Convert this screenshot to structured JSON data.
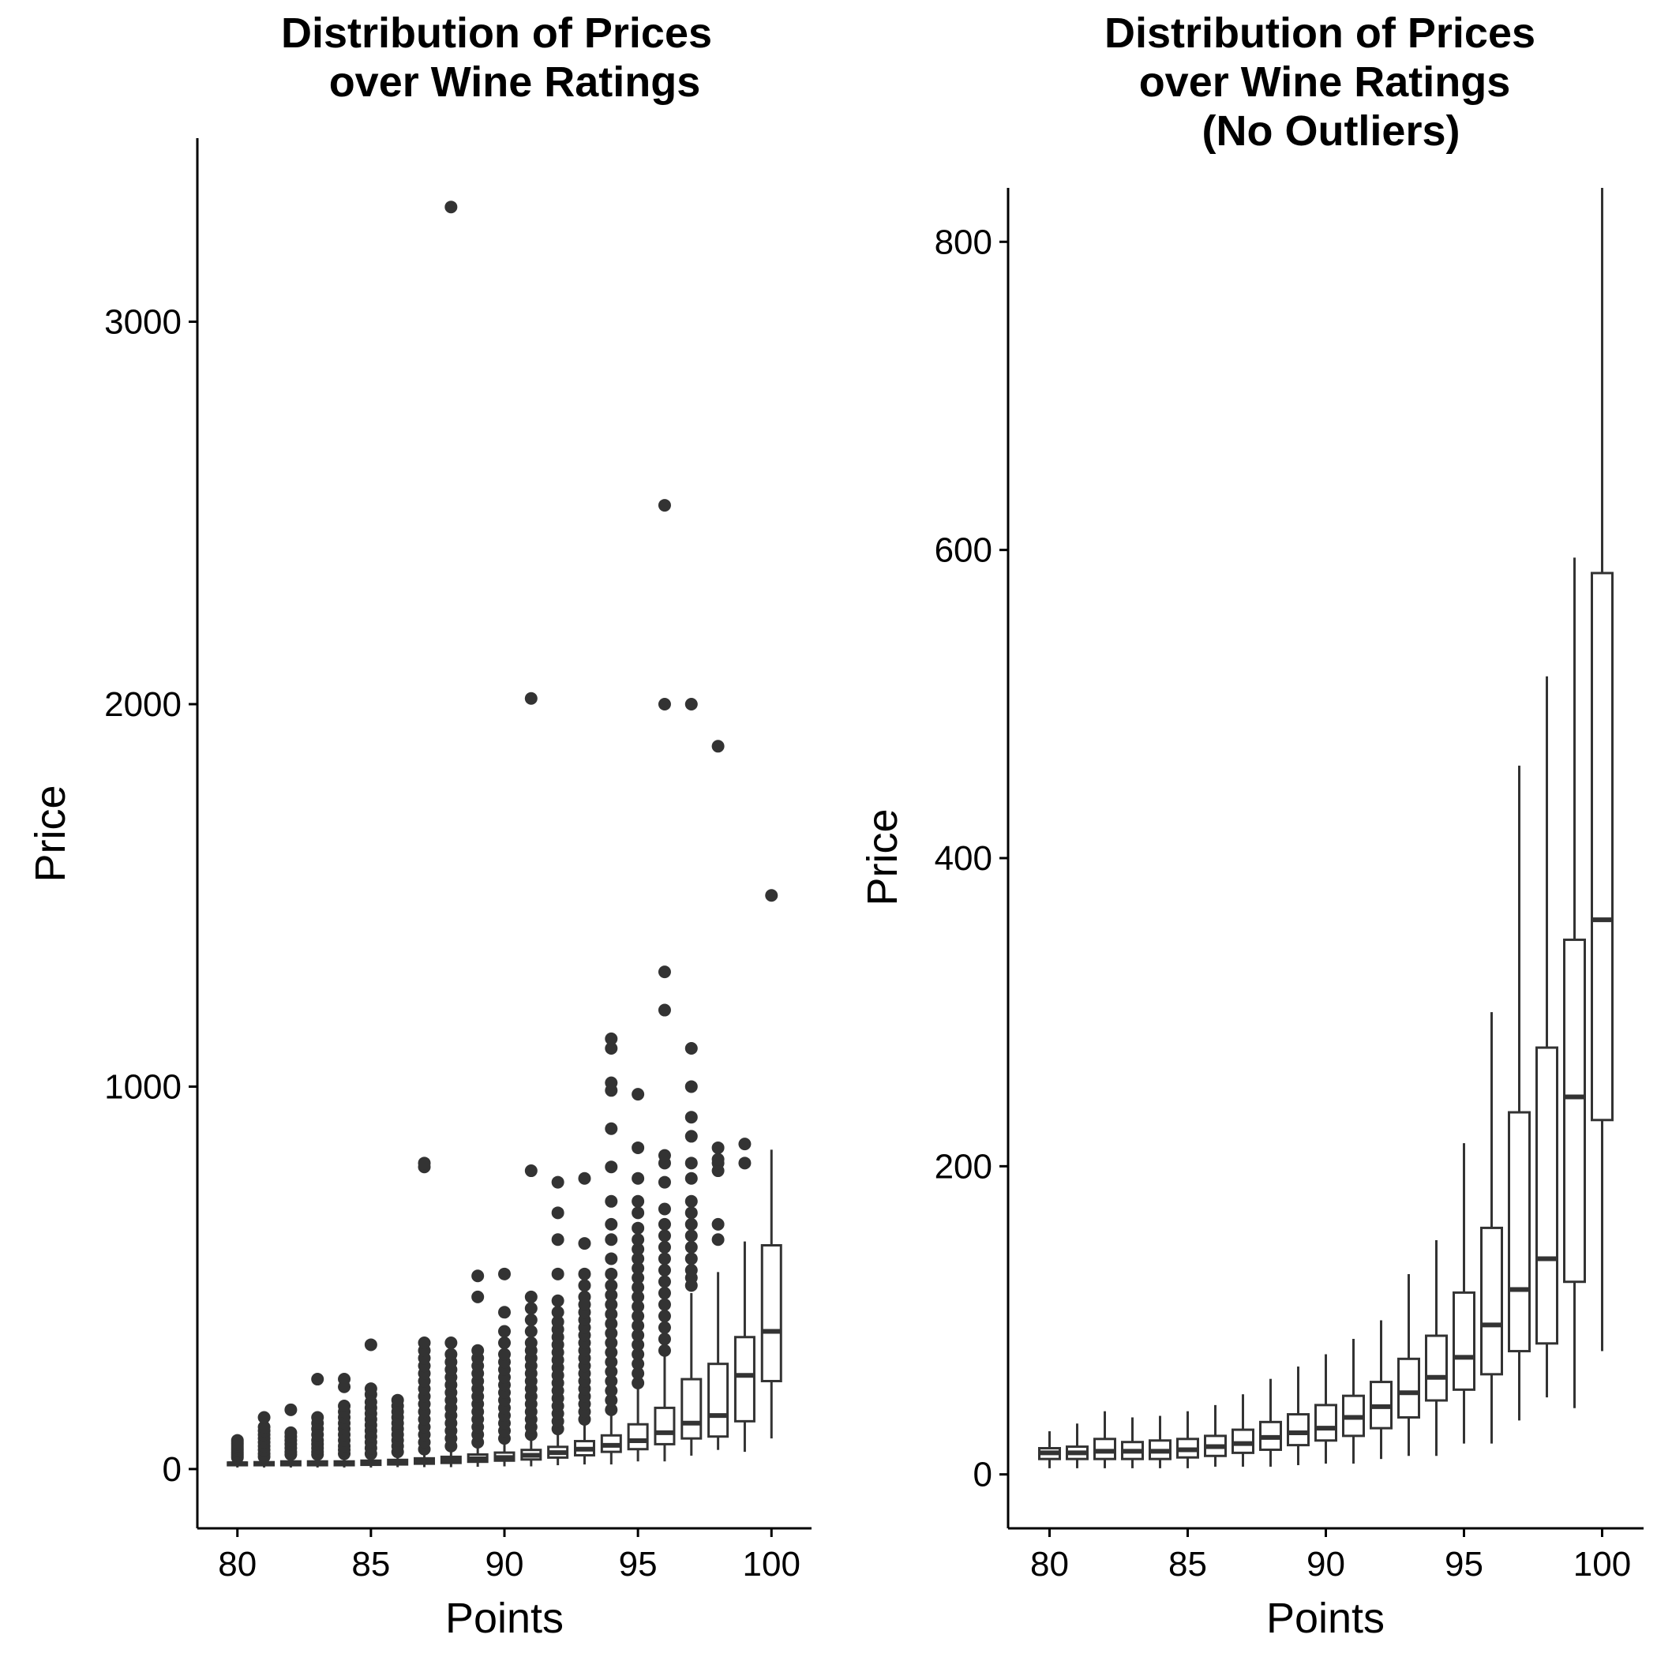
{
  "chart_data": [
    {
      "type": "boxplot",
      "title": [
        "Distribution of Prices",
        "over Wine Ratings"
      ],
      "xlabel": "Points",
      "ylabel": "Price",
      "xlim": [
        78.5,
        101.5
      ],
      "ylim": [
        -155,
        3480
      ],
      "xticks": [
        80,
        85,
        90,
        95,
        100
      ],
      "xtick_labels": [
        "80",
        "85",
        "90",
        "95",
        "100"
      ],
      "yticks": [
        0,
        1000,
        2000,
        3000
      ],
      "ytick_labels": [
        "0",
        "1000",
        "2000",
        "3000"
      ],
      "grid": false,
      "boxes": [
        {
          "x": 80,
          "q1": 10,
          "median": 14,
          "q3": 17,
          "whisker_low": 4,
          "whisker_high": 28,
          "outliers": [
            30,
            35,
            40,
            45,
            50,
            55,
            60,
            65,
            70,
            75
          ]
        },
        {
          "x": 81,
          "q1": 10,
          "median": 14,
          "q3": 18,
          "whisker_low": 4,
          "whisker_high": 30,
          "outliers": [
            32,
            40,
            50,
            60,
            70,
            80,
            90,
            100,
            110,
            135
          ]
        },
        {
          "x": 82,
          "q1": 10,
          "median": 15,
          "q3": 20,
          "whisker_low": 4,
          "whisker_high": 35,
          "outliers": [
            38,
            45,
            55,
            65,
            75,
            85,
            95,
            155
          ]
        },
        {
          "x": 83,
          "q1": 10,
          "median": 15,
          "q3": 20,
          "whisker_low": 4,
          "whisker_high": 35,
          "outliers": [
            38,
            45,
            55,
            65,
            75,
            90,
            105,
            120,
            135,
            235
          ]
        },
        {
          "x": 84,
          "q1": 10,
          "median": 15,
          "q3": 20,
          "whisker_low": 4,
          "whisker_high": 37,
          "outliers": [
            40,
            50,
            60,
            75,
            90,
            105,
            120,
            135,
            150,
            165,
            215,
            235
          ]
        },
        {
          "x": 85,
          "q1": 11,
          "median": 16,
          "q3": 22,
          "whisker_low": 4,
          "whisker_high": 38,
          "outliers": [
            40,
            55,
            70,
            85,
            100,
            115,
            130,
            145,
            160,
            175,
            195,
            210,
            325
          ]
        },
        {
          "x": 86,
          "q1": 12,
          "median": 18,
          "q3": 24,
          "whisker_low": 5,
          "whisker_high": 42,
          "outliers": [
            45,
            60,
            75,
            90,
            105,
            120,
            135,
            150,
            165,
            180
          ]
        },
        {
          "x": 87,
          "q1": 14,
          "median": 20,
          "q3": 28,
          "whisker_low": 5,
          "whisker_high": 48,
          "outliers": [
            52,
            70,
            90,
            110,
            130,
            150,
            170,
            190,
            210,
            230,
            250,
            270,
            290,
            310,
            330,
            790,
            800
          ]
        },
        {
          "x": 88,
          "q1": 16,
          "median": 24,
          "q3": 32,
          "whisker_low": 5,
          "whisker_high": 55,
          "outliers": [
            60,
            80,
            100,
            120,
            140,
            160,
            180,
            200,
            220,
            240,
            260,
            280,
            300,
            330,
            3300
          ]
        },
        {
          "x": 89,
          "q1": 19,
          "median": 27,
          "q3": 38,
          "whisker_low": 6,
          "whisker_high": 65,
          "outliers": [
            70,
            90,
            110,
            130,
            150,
            170,
            190,
            210,
            230,
            250,
            270,
            290,
            310,
            450,
            505
          ]
        },
        {
          "x": 90,
          "q1": 22,
          "median": 30,
          "q3": 43,
          "whisker_low": 7,
          "whisker_high": 75,
          "outliers": [
            80,
            100,
            120,
            140,
            160,
            180,
            200,
            220,
            240,
            260,
            280,
            300,
            330,
            360,
            410,
            510
          ]
        },
        {
          "x": 91,
          "q1": 25,
          "median": 36,
          "q3": 50,
          "whisker_low": 7,
          "whisker_high": 85,
          "outliers": [
            90,
            110,
            130,
            150,
            170,
            190,
            210,
            230,
            250,
            270,
            290,
            310,
            330,
            360,
            390,
            420,
            450,
            780,
            2015
          ]
        },
        {
          "x": 92,
          "q1": 30,
          "median": 43,
          "q3": 58,
          "whisker_low": 10,
          "whisker_high": 100,
          "outliers": [
            105,
            125,
            145,
            165,
            185,
            205,
            225,
            245,
            265,
            285,
            305,
            325,
            345,
            365,
            385,
            410,
            440,
            510,
            600,
            670,
            750
          ]
        },
        {
          "x": 93,
          "q1": 36,
          "median": 52,
          "q3": 73,
          "whisker_low": 12,
          "whisker_high": 125,
          "outliers": [
            130,
            150,
            170,
            190,
            210,
            230,
            250,
            270,
            290,
            310,
            330,
            350,
            370,
            390,
            410,
            430,
            450,
            480,
            510,
            590,
            760
          ]
        },
        {
          "x": 94,
          "q1": 45,
          "median": 62,
          "q3": 88,
          "whisker_low": 12,
          "whisker_high": 150,
          "outliers": [
            155,
            180,
            205,
            230,
            255,
            280,
            305,
            330,
            355,
            380,
            405,
            430,
            455,
            480,
            510,
            550,
            600,
            640,
            700,
            790,
            890,
            990,
            1010,
            1100,
            1125
          ]
        },
        {
          "x": 95,
          "q1": 52,
          "median": 74,
          "q3": 117,
          "whisker_low": 20,
          "whisker_high": 215,
          "outliers": [
            225,
            250,
            275,
            300,
            325,
            350,
            375,
            400,
            425,
            450,
            475,
            500,
            525,
            550,
            575,
            600,
            630,
            670,
            700,
            760,
            840,
            980
          ]
        },
        {
          "x": 96,
          "q1": 65,
          "median": 95,
          "q3": 160,
          "whisker_low": 20,
          "whisker_high": 300,
          "outliers": [
            310,
            340,
            370,
            400,
            430,
            460,
            490,
            520,
            550,
            580,
            610,
            640,
            680,
            750,
            800,
            820,
            1200,
            1300,
            2000,
            2520
          ]
        },
        {
          "x": 97,
          "q1": 80,
          "median": 120,
          "q3": 235,
          "whisker_low": 35,
          "whisker_high": 460,
          "outliers": [
            480,
            500,
            520,
            550,
            580,
            610,
            640,
            670,
            700,
            760,
            800,
            870,
            920,
            1000,
            1100,
            2000
          ]
        },
        {
          "x": 98,
          "q1": 85,
          "median": 140,
          "q3": 275,
          "whisker_low": 50,
          "whisker_high": 515,
          "outliers": [
            600,
            640,
            780,
            800,
            810,
            840,
            1890
          ]
        },
        {
          "x": 99,
          "q1": 125,
          "median": 245,
          "q3": 345,
          "whisker_low": 45,
          "whisker_high": 595,
          "outliers": [
            800,
            850
          ]
        },
        {
          "x": 100,
          "q1": 230,
          "median": 360,
          "q3": 585,
          "whisker_low": 80,
          "whisker_high": 835,
          "outliers": [
            1500
          ]
        }
      ]
    },
    {
      "type": "boxplot",
      "title": [
        "Distribution of Prices",
        "over Wine Ratings",
        "(No Outliers)"
      ],
      "xlabel": "Points",
      "ylabel": "Price",
      "xlim": [
        78.5,
        101.5
      ],
      "ylim": [
        -35,
        835
      ],
      "xticks": [
        80,
        85,
        90,
        95,
        100
      ],
      "xtick_labels": [
        "80",
        "85",
        "90",
        "95",
        "100"
      ],
      "yticks": [
        0,
        200,
        400,
        600,
        800
      ],
      "ytick_labels": [
        "0",
        "200",
        "400",
        "600",
        "800"
      ],
      "grid": false,
      "boxes": [
        {
          "x": 80,
          "q1": 10,
          "median": 14,
          "q3": 17,
          "whisker_low": 4,
          "whisker_high": 28
        },
        {
          "x": 81,
          "q1": 10,
          "median": 14,
          "q3": 18,
          "whisker_low": 4,
          "whisker_high": 33
        },
        {
          "x": 82,
          "q1": 10,
          "median": 15,
          "q3": 23,
          "whisker_low": 4,
          "whisker_high": 41
        },
        {
          "x": 83,
          "q1": 10,
          "median": 15,
          "q3": 21,
          "whisker_low": 4,
          "whisker_high": 37
        },
        {
          "x": 84,
          "q1": 10,
          "median": 15,
          "q3": 22,
          "whisker_low": 4,
          "whisker_high": 38
        },
        {
          "x": 85,
          "q1": 11,
          "median": 16,
          "q3": 23,
          "whisker_low": 4,
          "whisker_high": 41
        },
        {
          "x": 86,
          "q1": 12,
          "median": 18,
          "q3": 25,
          "whisker_low": 5,
          "whisker_high": 45
        },
        {
          "x": 87,
          "q1": 14,
          "median": 20,
          "q3": 29,
          "whisker_low": 5,
          "whisker_high": 52
        },
        {
          "x": 88,
          "q1": 16,
          "median": 24,
          "q3": 34,
          "whisker_low": 5,
          "whisker_high": 62
        },
        {
          "x": 89,
          "q1": 19,
          "median": 27,
          "q3": 39,
          "whisker_low": 6,
          "whisker_high": 70
        },
        {
          "x": 90,
          "q1": 22,
          "median": 30,
          "q3": 45,
          "whisker_low": 7,
          "whisker_high": 78
        },
        {
          "x": 91,
          "q1": 25,
          "median": 37,
          "q3": 51,
          "whisker_low": 7,
          "whisker_high": 88
        },
        {
          "x": 92,
          "q1": 30,
          "median": 44,
          "q3": 60,
          "whisker_low": 10,
          "whisker_high": 100
        },
        {
          "x": 93,
          "q1": 37,
          "median": 53,
          "q3": 75,
          "whisker_low": 12,
          "whisker_high": 130
        },
        {
          "x": 94,
          "q1": 48,
          "median": 63,
          "q3": 90,
          "whisker_low": 12,
          "whisker_high": 152
        },
        {
          "x": 95,
          "q1": 55,
          "median": 76,
          "q3": 118,
          "whisker_low": 20,
          "whisker_high": 215
        },
        {
          "x": 96,
          "q1": 65,
          "median": 97,
          "q3": 160,
          "whisker_low": 20,
          "whisker_high": 300
        },
        {
          "x": 97,
          "q1": 80,
          "median": 120,
          "q3": 235,
          "whisker_low": 35,
          "whisker_high": 460
        },
        {
          "x": 98,
          "q1": 85,
          "median": 140,
          "q3": 277,
          "whisker_low": 50,
          "whisker_high": 518
        },
        {
          "x": 99,
          "q1": 125,
          "median": 245,
          "q3": 347,
          "whisker_low": 43,
          "whisker_high": 595
        },
        {
          "x": 100,
          "q1": 230,
          "median": 360,
          "q3": 585,
          "whisker_low": 80,
          "whisker_high": 835
        }
      ]
    }
  ]
}
